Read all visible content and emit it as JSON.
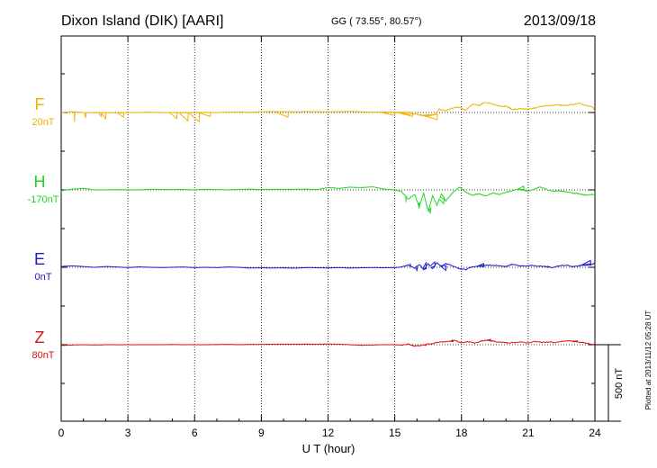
{
  "header": {
    "station": "Dixon Island (DIK)  [AARI]",
    "coords": "GG ( 73.55°,  80.57°)",
    "date": "2013/09/18"
  },
  "side_note": "Plotted at 2013/11/12 05:28 UT",
  "colors": {
    "F": "#f2b000",
    "H": "#1fd51f",
    "E": "#1a1acc",
    "Z": "#e01010"
  },
  "chart_data": {
    "type": "line",
    "title": "Dixon Island (DIK)  [AARI]",
    "xlabel": "U T (hour)",
    "xlim": [
      0,
      24
    ],
    "xticks": [
      0,
      3,
      6,
      9,
      12,
      15,
      18,
      21,
      24
    ],
    "scale_bar": "500 nT",
    "grid": "dotted",
    "series": [
      {
        "name": "F",
        "base": "20nT",
        "color": "#f2b000",
        "x": [
          0,
          0.5,
          1,
          1.5,
          2,
          2.5,
          3,
          3.5,
          4,
          4.5,
          5,
          5.5,
          6,
          6.5,
          7,
          7.5,
          8,
          8.5,
          9,
          9.5,
          10,
          10.5,
          11,
          11.5,
          12,
          12.5,
          13,
          13.5,
          14,
          14.5,
          15,
          15.3,
          15.6,
          15.9,
          16.2,
          16.5,
          16.8,
          17,
          17.3,
          17.6,
          17.9,
          18.2,
          18.5,
          18.8,
          19,
          19.3,
          19.6,
          20,
          20.3,
          20.6,
          21,
          21.3,
          21.6,
          22,
          22.3,
          22.6,
          23,
          23.3,
          23.6,
          23.9,
          24
        ],
        "y": [
          0,
          5,
          0,
          -2,
          0,
          -3,
          0,
          0,
          2,
          0,
          0,
          -2,
          0,
          0,
          0,
          2,
          3,
          2,
          4,
          6,
          5,
          4,
          6,
          5,
          4,
          5,
          7,
          4,
          2,
          3,
          3,
          0,
          -12,
          -8,
          -18,
          -22,
          -14,
          20,
          10,
          30,
          35,
          15,
          55,
          45,
          65,
          60,
          45,
          40,
          20,
          25,
          22,
          30,
          40,
          45,
          50,
          45,
          52,
          60,
          45,
          35,
          10
        ],
        "spikes": [
          [
            0.6,
            -60
          ],
          [
            1.1,
            -35
          ],
          [
            1.8,
            -25
          ],
          [
            2.0,
            -40
          ],
          [
            2.8,
            -30
          ],
          [
            5.2,
            -40
          ],
          [
            5.7,
            -55
          ],
          [
            6.2,
            -60
          ],
          [
            6.7,
            -25
          ],
          [
            10.2,
            -30
          ],
          [
            15.0,
            -20
          ],
          [
            15.8,
            -25
          ],
          [
            16.9,
            -45
          ]
        ]
      },
      {
        "name": "H",
        "base": "-170nT",
        "color": "#1fd51f",
        "x": [
          0,
          0.5,
          1,
          1.5,
          2,
          2.5,
          3,
          3.5,
          4,
          4.5,
          5,
          5.5,
          6,
          6.5,
          7,
          7.5,
          8,
          8.5,
          9,
          9.5,
          10,
          10.5,
          11,
          11.5,
          12,
          12.5,
          13,
          13.5,
          14,
          14.5,
          15,
          15.3,
          15.6,
          15.9,
          16.1,
          16.3,
          16.5,
          16.7,
          16.9,
          17.1,
          17.3,
          17.6,
          17.9,
          18.2,
          18.5,
          18.8,
          19.1,
          19.4,
          19.7,
          20,
          20.3,
          20.6,
          20.9,
          21.2,
          21.5,
          21.8,
          22.1,
          22.4,
          22.7,
          23,
          23.3,
          23.6,
          23.9,
          24
        ],
        "y": [
          -5,
          5,
          10,
          0,
          0,
          2,
          0,
          0,
          5,
          3,
          2,
          3,
          0,
          4,
          2,
          0,
          3,
          5,
          2,
          4,
          3,
          4,
          5,
          2,
          15,
          10,
          18,
          15,
          20,
          6,
          0,
          -10,
          -60,
          -30,
          -110,
          -20,
          -140,
          -40,
          -100,
          -25,
          -70,
          -20,
          20,
          -15,
          -35,
          -25,
          -40,
          -20,
          -30,
          -15,
          -5,
          5,
          -8,
          -2,
          20,
          5,
          -10,
          -5,
          -12,
          -20,
          -25,
          -35,
          -30,
          -30
        ],
        "spikes": [
          [
            15.5,
            -80
          ],
          [
            16.1,
            -120
          ],
          [
            16.6,
            -150
          ],
          [
            17.2,
            -90
          ],
          [
            20.8,
            25
          ]
        ]
      },
      {
        "name": "E",
        "base": "0nT",
        "color": "#1a1acc",
        "x": [
          0,
          0.5,
          1,
          1.5,
          2,
          2.5,
          3,
          3.5,
          4,
          4.5,
          5,
          5.5,
          6,
          6.5,
          7,
          7.5,
          8,
          8.5,
          9,
          9.5,
          10,
          10.5,
          11,
          11.5,
          12,
          12.5,
          13,
          13.5,
          14,
          14.5,
          15,
          15.3,
          15.6,
          15.9,
          16.1,
          16.3,
          16.5,
          16.7,
          16.9,
          17.1,
          17.3,
          17.6,
          17.9,
          18.2,
          18.5,
          18.8,
          19.1,
          19.4,
          19.7,
          20,
          20.3,
          20.6,
          20.9,
          21.2,
          21.5,
          21.8,
          22.1,
          22.4,
          22.7,
          23,
          23.3,
          23.6,
          23.9,
          24
        ],
        "y": [
          5,
          10,
          5,
          0,
          5,
          2,
          -2,
          3,
          0,
          -2,
          0,
          2,
          -2,
          0,
          -2,
          2,
          0,
          -5,
          -3,
          -5,
          -3,
          -6,
          -2,
          -3,
          -4,
          -2,
          -5,
          -3,
          -2,
          -3,
          -2,
          2,
          15,
          -5,
          20,
          -15,
          25,
          -10,
          30,
          5,
          25,
          10,
          -10,
          -15,
          5,
          8,
          15,
          12,
          10,
          5,
          20,
          10,
          8,
          12,
          8,
          5,
          -2,
          10,
          15,
          5,
          10,
          20,
          20,
          35
        ],
        "spikes": [
          [
            15.7,
            25
          ],
          [
            16.0,
            -20
          ],
          [
            16.4,
            28
          ],
          [
            16.8,
            35
          ],
          [
            17.3,
            -20
          ],
          [
            19.0,
            25
          ],
          [
            23.8,
            45
          ]
        ]
      },
      {
        "name": "Z",
        "base": "80nT",
        "color": "#e01010",
        "x": [
          0,
          0.5,
          1,
          1.5,
          2,
          2.5,
          3,
          3.5,
          4,
          4.5,
          5,
          5.5,
          6,
          6.5,
          7,
          7.5,
          8,
          8.5,
          9,
          9.5,
          10,
          10.5,
          11,
          11.5,
          12,
          12.5,
          13,
          13.5,
          14,
          14.5,
          15,
          15.3,
          15.6,
          15.9,
          16.1,
          16.3,
          16.5,
          16.7,
          16.9,
          17.1,
          17.4,
          17.7,
          18,
          18.3,
          18.6,
          18.9,
          19.2,
          19.5,
          19.8,
          20.1,
          20.4,
          20.7,
          21,
          21.3,
          21.6,
          21.9,
          22.2,
          22.5,
          22.8,
          23.1,
          23.4,
          23.7,
          24
        ],
        "y": [
          -5,
          -2,
          0,
          -2,
          0,
          0,
          0,
          0,
          0,
          0,
          1,
          0,
          0,
          0,
          1,
          2,
          0,
          2,
          2,
          3,
          3,
          3,
          4,
          3,
          5,
          3,
          0,
          -4,
          -2,
          0,
          0,
          -3,
          5,
          -10,
          -5,
          -2,
          5,
          8,
          15,
          18,
          22,
          28,
          12,
          20,
          10,
          25,
          30,
          20,
          15,
          12,
          14,
          18,
          12,
          20,
          15,
          18,
          15,
          22,
          25,
          20,
          15,
          8,
          0
        ],
        "spikes": [
          [
            15.9,
            -12
          ],
          [
            16.4,
            -6
          ],
          [
            17.6,
            30
          ],
          [
            19.3,
            35
          ],
          [
            23.2,
            20
          ]
        ]
      }
    ]
  }
}
